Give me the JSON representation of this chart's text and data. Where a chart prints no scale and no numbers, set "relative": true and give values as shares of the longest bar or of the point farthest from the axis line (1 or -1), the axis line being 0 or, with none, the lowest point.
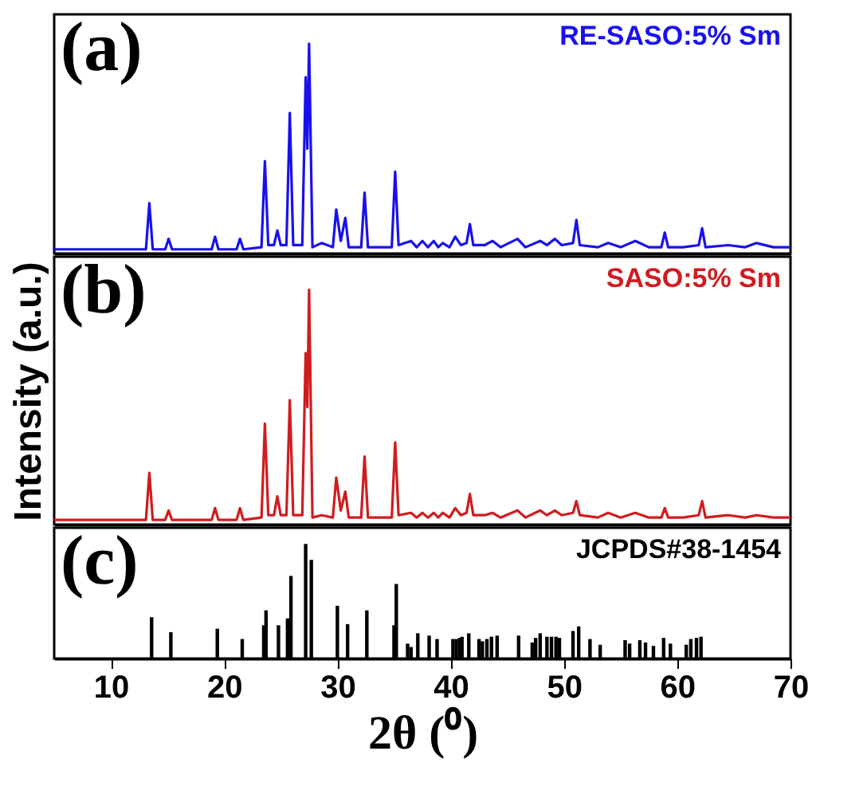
{
  "chart_data": [
    {
      "type": "line",
      "relative": true,
      "xlim": [
        5,
        70
      ],
      "tick_labels": false,
      "annotations": [
        "(a)"
      ],
      "x": [
        5,
        8,
        11,
        13.1,
        13.4,
        13.7,
        14.8,
        15.1,
        15.4,
        18.9,
        19.2,
        19.5,
        21.1,
        21.4,
        21.7,
        23.3,
        23.6,
        23.9,
        24.4,
        24.7,
        25.0,
        25.5,
        25.8,
        26.1,
        26.9,
        27.2,
        27.35,
        27.5,
        27.8,
        28.6,
        29.6,
        29.9,
        30.3,
        30.7,
        31.0,
        32.1,
        32.4,
        32.7,
        34.8,
        35.1,
        35.4,
        36.5,
        37.0,
        37.5,
        38.0,
        38.5,
        38.9,
        39.3,
        39.9,
        40.4,
        40.9,
        41.4,
        41.7,
        42.0,
        43.0,
        43.7,
        44.4,
        45.9,
        46.6,
        47.9,
        48.5,
        49.2,
        49.8,
        50.8,
        51.1,
        51.4,
        53.0,
        53.9,
        55.0,
        56.3,
        57.5,
        58.6,
        58.9,
        59.2,
        60.5,
        61.9,
        62.2,
        62.5,
        64.5,
        66.0,
        67.0,
        68.5,
        70
      ],
      "series": [
        {
          "name": "RE-SASO:5% Sm",
          "color": "#1a10ee",
          "values": [
            0.02,
            0.02,
            0.02,
            0.02,
            0.24,
            0.02,
            0.02,
            0.07,
            0.02,
            0.02,
            0.08,
            0.02,
            0.02,
            0.07,
            0.02,
            0.03,
            0.44,
            0.04,
            0.04,
            0.11,
            0.04,
            0.04,
            0.67,
            0.04,
            0.04,
            0.84,
            0.5,
            1.0,
            0.03,
            0.05,
            0.03,
            0.21,
            0.06,
            0.17,
            0.03,
            0.03,
            0.29,
            0.03,
            0.03,
            0.39,
            0.04,
            0.06,
            0.03,
            0.06,
            0.03,
            0.06,
            0.03,
            0.05,
            0.03,
            0.08,
            0.04,
            0.05,
            0.14,
            0.04,
            0.04,
            0.06,
            0.03,
            0.07,
            0.03,
            0.06,
            0.04,
            0.07,
            0.04,
            0.05,
            0.16,
            0.04,
            0.03,
            0.05,
            0.03,
            0.06,
            0.03,
            0.03,
            0.1,
            0.03,
            0.03,
            0.04,
            0.12,
            0.03,
            0.04,
            0.03,
            0.05,
            0.03,
            0.03
          ]
        }
      ]
    },
    {
      "type": "line",
      "relative": true,
      "xlim": [
        5,
        70
      ],
      "tick_labels": false,
      "annotations": [
        "(b)"
      ],
      "ylabel": "Intensity (a.u.)",
      "x": [
        5,
        8,
        11,
        13.1,
        13.4,
        13.7,
        14.8,
        15.1,
        15.4,
        18.9,
        19.2,
        19.5,
        21.1,
        21.4,
        21.7,
        23.3,
        23.6,
        23.9,
        24.4,
        24.7,
        25.0,
        25.5,
        25.8,
        26.1,
        26.9,
        27.2,
        27.35,
        27.5,
        27.8,
        28.6,
        29.6,
        29.9,
        30.3,
        30.7,
        31.0,
        32.1,
        32.4,
        32.7,
        34.8,
        35.1,
        35.4,
        36.5,
        37.0,
        37.5,
        38.0,
        38.5,
        38.9,
        39.3,
        39.9,
        40.4,
        40.9,
        41.4,
        41.7,
        42.0,
        43.0,
        43.7,
        44.4,
        45.9,
        46.6,
        47.9,
        48.5,
        49.2,
        49.8,
        50.8,
        51.1,
        51.4,
        53.0,
        53.9,
        55.0,
        56.3,
        57.5,
        58.6,
        58.9,
        59.2,
        60.5,
        61.9,
        62.2,
        62.5,
        64.5,
        66.0,
        67.0,
        68.5,
        70
      ],
      "series": [
        {
          "name": "SASO:5% Sm",
          "color": "#d01c1f",
          "values": [
            0.02,
            0.02,
            0.02,
            0.02,
            0.22,
            0.02,
            0.02,
            0.06,
            0.02,
            0.02,
            0.07,
            0.02,
            0.02,
            0.07,
            0.02,
            0.03,
            0.43,
            0.04,
            0.04,
            0.12,
            0.04,
            0.04,
            0.53,
            0.04,
            0.04,
            0.73,
            0.5,
            1.0,
            0.03,
            0.04,
            0.03,
            0.2,
            0.06,
            0.14,
            0.03,
            0.03,
            0.29,
            0.03,
            0.03,
            0.35,
            0.04,
            0.05,
            0.03,
            0.05,
            0.03,
            0.05,
            0.03,
            0.05,
            0.03,
            0.07,
            0.04,
            0.05,
            0.13,
            0.04,
            0.04,
            0.05,
            0.03,
            0.06,
            0.03,
            0.06,
            0.04,
            0.06,
            0.04,
            0.05,
            0.1,
            0.04,
            0.03,
            0.05,
            0.03,
            0.05,
            0.03,
            0.03,
            0.07,
            0.03,
            0.03,
            0.04,
            0.1,
            0.03,
            0.04,
            0.03,
            0.04,
            0.03,
            0.03
          ]
        }
      ]
    },
    {
      "type": "bar",
      "relative": true,
      "xlim": [
        5,
        70
      ],
      "xticks": [
        10,
        20,
        30,
        40,
        50,
        60,
        70
      ],
      "tick_labels": "x",
      "xlabel": "2θ (⁰)",
      "annotations": [
        "(c)"
      ],
      "x": [
        13.6,
        15.3,
        19.4,
        21.6,
        23.5,
        23.7,
        24.8,
        25.6,
        25.9,
        27.2,
        27.7,
        30.0,
        30.9,
        32.6,
        35.0,
        35.2,
        36.2,
        36.5,
        37.1,
        38.1,
        38.8,
        40.2,
        40.5,
        40.8,
        41.0,
        41.6,
        42.5,
        42.8,
        43.2,
        43.6,
        44.1,
        46.0,
        47.2,
        47.5,
        47.9,
        48.5,
        48.9,
        49.3,
        49.6,
        50.8,
        51.3,
        52.3,
        53.2,
        55.4,
        55.8,
        56.7,
        57.2,
        57.9,
        58.8,
        59.4,
        60.8,
        61.2,
        61.7,
        62.1
      ],
      "series": [
        {
          "name": "JCPDS#38-1454",
          "color": "#000000",
          "values": [
            0.36,
            0.23,
            0.26,
            0.17,
            0.29,
            0.42,
            0.29,
            0.35,
            0.72,
            1.0,
            0.86,
            0.46,
            0.3,
            0.42,
            0.29,
            0.65,
            0.13,
            0.1,
            0.22,
            0.2,
            0.17,
            0.17,
            0.17,
            0.18,
            0.19,
            0.22,
            0.17,
            0.15,
            0.17,
            0.19,
            0.2,
            0.2,
            0.14,
            0.18,
            0.22,
            0.19,
            0.19,
            0.19,
            0.18,
            0.24,
            0.28,
            0.17,
            0.12,
            0.16,
            0.13,
            0.16,
            0.14,
            0.11,
            0.18,
            0.13,
            0.12,
            0.17,
            0.18,
            0.19
          ]
        }
      ]
    }
  ]
}
